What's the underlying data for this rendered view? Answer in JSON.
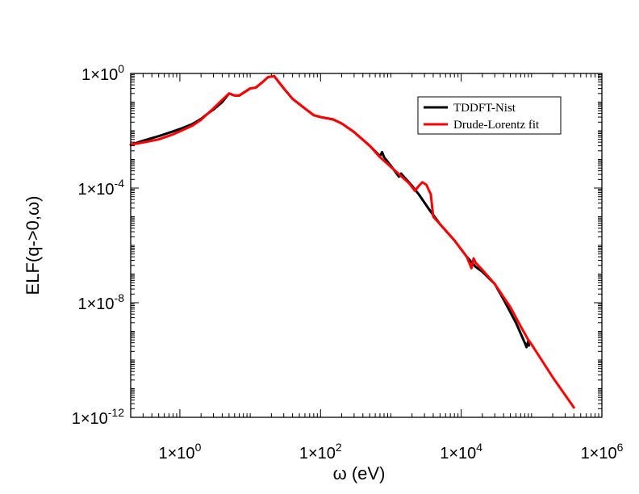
{
  "chart_data": {
    "type": "line",
    "title": "",
    "xlabel": "ω (eV)",
    "ylabel": "ELF(q->0,ω)",
    "xscale": "log",
    "yscale": "log",
    "xlim": [
      0.2,
      1000000
    ],
    "ylim": [
      1e-12,
      1
    ],
    "grid": false,
    "legend_position": "top-right",
    "x_ticks": [
      {
        "value": 1,
        "base": "1×10",
        "exp": "0"
      },
      {
        "value": 100,
        "base": "1×10",
        "exp": "2"
      },
      {
        "value": 10000,
        "base": "1×10",
        "exp": "4"
      },
      {
        "value": 1000000,
        "base": "1×10",
        "exp": "6"
      }
    ],
    "y_ticks": [
      {
        "value": 1,
        "base": "1×10",
        "exp": "0"
      },
      {
        "value": 0.0001,
        "base": "1×10",
        "exp": "-4"
      },
      {
        "value": 1e-08,
        "base": "1×10",
        "exp": "-8"
      },
      {
        "value": 1e-12,
        "base": "1×10",
        "exp": "-12"
      }
    ],
    "series": [
      {
        "name": "TDDFT-Nist",
        "color": "#000000",
        "points": [
          [
            0.2,
            0.0032
          ],
          [
            0.3,
            0.0045
          ],
          [
            0.5,
            0.0065
          ],
          [
            0.8,
            0.0095
          ],
          [
            1.0,
            0.0115
          ],
          [
            1.5,
            0.017
          ],
          [
            2.0,
            0.026
          ],
          [
            2.5,
            0.04
          ],
          [
            3.0,
            0.055
          ],
          [
            4.0,
            0.1
          ],
          [
            5.0,
            0.2
          ],
          [
            6.0,
            0.17
          ],
          [
            7.0,
            0.17
          ],
          [
            8.0,
            0.21
          ],
          [
            10.0,
            0.3
          ],
          [
            12.0,
            0.32
          ],
          [
            15.0,
            0.5
          ],
          [
            18.0,
            0.75
          ],
          [
            22.0,
            0.8
          ],
          [
            30.0,
            0.3
          ],
          [
            40.0,
            0.13
          ],
          [
            60.0,
            0.06
          ],
          [
            80.0,
            0.035
          ],
          [
            100.0,
            0.03
          ],
          [
            150.0,
            0.025
          ],
          [
            200.0,
            0.018
          ],
          [
            300.0,
            0.009
          ],
          [
            500.0,
            0.003
          ],
          [
            700.0,
            0.0013
          ],
          [
            750.0,
            0.0018
          ],
          [
            800.0,
            0.0012
          ],
          [
            1000.0,
            0.0006
          ],
          [
            1300.0,
            0.00025
          ],
          [
            1400.0,
            0.00032
          ],
          [
            1600.0,
            0.00022
          ],
          [
            2000.0,
            0.00012
          ],
          [
            2500.0,
            6e-05
          ],
          [
            3500.0,
            1.8e-05
          ],
          [
            5000.0,
            5.5e-06
          ],
          [
            8000.0,
            1.5e-06
          ],
          [
            12000.0,
            4e-07
          ],
          [
            16000.0,
            1.8e-07
          ],
          [
            20000.0,
            1.2e-07
          ],
          [
            30000.0,
            4.5e-08
          ],
          [
            40000.0,
            1.3e-08
          ],
          [
            60000.0,
            2e-09
          ],
          [
            80000.0,
            4e-10
          ],
          [
            85000.0,
            2.8e-10
          ],
          [
            90000.0,
            4.8e-10
          ],
          [
            92000.0,
            3.2e-10
          ]
        ]
      },
      {
        "name": "Drude-Lorentz fit",
        "color": "#ff0000",
        "points": [
          [
            0.2,
            0.0033
          ],
          [
            0.3,
            0.0039
          ],
          [
            0.5,
            0.005
          ],
          [
            0.8,
            0.0075
          ],
          [
            1.0,
            0.0095
          ],
          [
            1.5,
            0.015
          ],
          [
            2.0,
            0.024
          ],
          [
            2.5,
            0.04
          ],
          [
            3.0,
            0.06
          ],
          [
            4.0,
            0.12
          ],
          [
            5.0,
            0.2
          ],
          [
            6.0,
            0.17
          ],
          [
            7.0,
            0.17
          ],
          [
            8.0,
            0.21
          ],
          [
            10.0,
            0.3
          ],
          [
            12.0,
            0.32
          ],
          [
            15.0,
            0.5
          ],
          [
            18.0,
            0.75
          ],
          [
            22.0,
            0.8
          ],
          [
            30.0,
            0.3
          ],
          [
            40.0,
            0.13
          ],
          [
            60.0,
            0.06
          ],
          [
            80.0,
            0.035
          ],
          [
            100.0,
            0.03
          ],
          [
            150.0,
            0.025
          ],
          [
            200.0,
            0.018
          ],
          [
            300.0,
            0.009
          ],
          [
            500.0,
            0.003
          ],
          [
            700.0,
            0.0012
          ],
          [
            1000.0,
            0.00055
          ],
          [
            1400.0,
            0.00026
          ],
          [
            1800.0,
            0.00015
          ],
          [
            2200.0,
            8e-05
          ],
          [
            2500.0,
            0.00012
          ],
          [
            2800.0,
            0.00016
          ],
          [
            3200.0,
            0.00013
          ],
          [
            3700.0,
            6e-05
          ],
          [
            4000.0,
            1e-05
          ],
          [
            5000.0,
            5.5e-06
          ],
          [
            8000.0,
            1.5e-06
          ],
          [
            12000.0,
            4e-07
          ],
          [
            14000.0,
            1.6e-07
          ],
          [
            15000.0,
            3.5e-07
          ],
          [
            16000.0,
            2.5e-07
          ],
          [
            20000.0,
            1.4e-07
          ],
          [
            30000.0,
            4.5e-08
          ],
          [
            50000.0,
            7e-09
          ],
          [
            70000.0,
            1.5e-09
          ],
          [
            90000.0,
            5e-10
          ],
          [
            100000.0,
            3.5e-10
          ],
          [
            200000.0,
            2.5e-11
          ],
          [
            400000.0,
            2.2e-12
          ]
        ]
      }
    ]
  }
}
